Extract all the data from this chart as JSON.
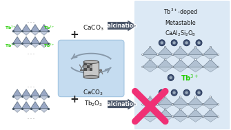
{
  "bg_color": "#ffffff",
  "right_panel_bg": "#dce9f5",
  "mixer_box_bg": "#c5dcf0",
  "calcination_box_color": "#4a5568",
  "calcination_text": "Calcination",
  "cross_color": "#f03075",
  "tb_color": "#22cc00",
  "plus_color": "#222222",
  "caco3_text_top": "CaCO$_3$",
  "caco3_text_bottom": "CaCO$_3$\nTb$_2$O$_3$",
  "tb_doped_text": "Tb$^{3+}$-doped\nMetastable\nCaAl$_2$Si$_2$O$_8$",
  "kaolinite_color": "#8899bb",
  "kaolinite_edge_color": "#445566",
  "dot_color": "#445577"
}
